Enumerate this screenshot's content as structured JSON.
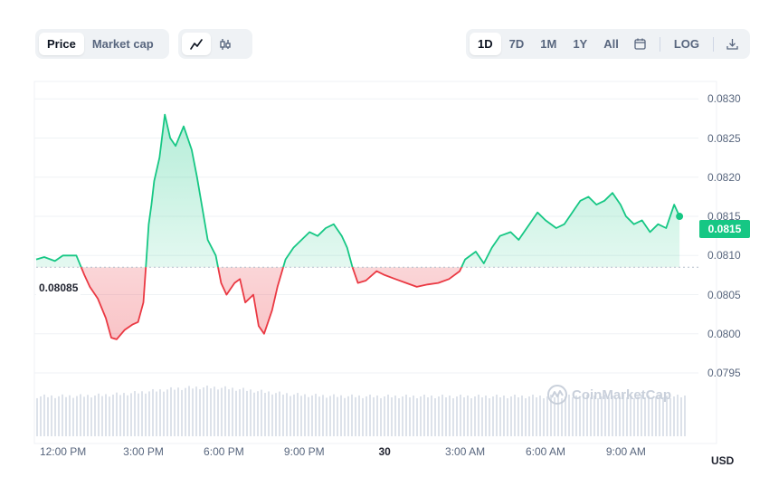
{
  "toolbar": {
    "metric_tabs": [
      "Price",
      "Market cap"
    ],
    "metric_active": "Price",
    "chart_type_icons": [
      "line-chart-icon",
      "candlestick-icon"
    ],
    "chart_type_active": "line-chart-icon",
    "range_tabs": [
      "1D",
      "7D",
      "1M",
      "1Y",
      "All"
    ],
    "range_active": "1D",
    "calendar_icon": "calendar-icon",
    "log_label": "LOG",
    "download_icon": "download-icon"
  },
  "watermark": "CoinMarketCap",
  "colors": {
    "up": "#16c784",
    "down": "#ea3943",
    "volume": "#dde2ea",
    "grid": "#eff2f5"
  },
  "chart_data": {
    "type": "line",
    "currency_label": "USD",
    "reference_value": 0.08085,
    "reference_label": "0.08085",
    "current_value": 0.0815,
    "current_label": "0.0815",
    "ylim": [
      0.0792,
      0.0832
    ],
    "y_ticks": [
      "0.0830",
      "0.0825",
      "0.0820",
      "0.0815",
      "0.0810",
      "0.0805",
      "0.0800",
      "0.0795"
    ],
    "x_ticks": [
      {
        "label": "12:00 PM",
        "t": 12,
        "bold": false
      },
      {
        "label": "3:00 PM",
        "t": 15,
        "bold": false
      },
      {
        "label": "6:00 PM",
        "t": 18,
        "bold": false
      },
      {
        "label": "9:00 PM",
        "t": 21,
        "bold": false
      },
      {
        "label": "30",
        "t": 24,
        "bold": true
      },
      {
        "label": "3:00 AM",
        "t": 27,
        "bold": false
      },
      {
        "label": "6:00 AM",
        "t": 30,
        "bold": false
      },
      {
        "label": "9:00 AM",
        "t": 33,
        "bold": false
      }
    ],
    "xlim": [
      11.0,
      35.3
    ],
    "series": [
      {
        "t": [
          11.0,
          11.3,
          11.7,
          12.0,
          12.5,
          12.8,
          13.0,
          13.3,
          13.6,
          13.8,
          14.0,
          14.3,
          14.6,
          14.8,
          15.0,
          15.1,
          15.2,
          15.3,
          15.4,
          15.6,
          15.8,
          16.0,
          16.2,
          16.5,
          16.8,
          17.0,
          17.2,
          17.4,
          17.7,
          17.9,
          18.1,
          18.4,
          18.6,
          18.8,
          19.1,
          19.3,
          19.5,
          19.8,
          20.0,
          20.3,
          20.6,
          20.9,
          21.2,
          21.5,
          21.8,
          22.1,
          22.4,
          22.6,
          22.8,
          23.0,
          23.3,
          23.7,
          24.0,
          24.4,
          24.8,
          25.2,
          25.6,
          26.0,
          26.4,
          26.8,
          27.0,
          27.4,
          27.7,
          28.0,
          28.3,
          28.7,
          29.0,
          29.4,
          29.7,
          30.0,
          30.4,
          30.7,
          31.0,
          31.3,
          31.6,
          31.9,
          32.2,
          32.5,
          32.8,
          33.0,
          33.3,
          33.6,
          33.9,
          34.2,
          34.5,
          34.8,
          35.0
        ],
        "price": [
          0.08095,
          0.08098,
          0.08093,
          0.081,
          0.081,
          0.08075,
          0.0806,
          0.08045,
          0.0802,
          0.07995,
          0.07993,
          0.08005,
          0.08012,
          0.08015,
          0.0804,
          0.0809,
          0.0814,
          0.08165,
          0.08195,
          0.08225,
          0.0828,
          0.0825,
          0.0824,
          0.08265,
          0.08235,
          0.082,
          0.0816,
          0.0812,
          0.081,
          0.08065,
          0.0805,
          0.08065,
          0.0807,
          0.0804,
          0.0805,
          0.0801,
          0.08,
          0.0803,
          0.0806,
          0.08095,
          0.0811,
          0.0812,
          0.0813,
          0.08125,
          0.08135,
          0.0814,
          0.08125,
          0.0811,
          0.08085,
          0.08065,
          0.08068,
          0.0808,
          0.08075,
          0.0807,
          0.08065,
          0.0806,
          0.08063,
          0.08065,
          0.0807,
          0.0808,
          0.08095,
          0.08105,
          0.0809,
          0.0811,
          0.08125,
          0.0813,
          0.0812,
          0.0814,
          0.08155,
          0.08145,
          0.08135,
          0.0814,
          0.08155,
          0.0817,
          0.08175,
          0.08165,
          0.0817,
          0.0818,
          0.08165,
          0.0815,
          0.0814,
          0.08145,
          0.0813,
          0.0814,
          0.08135,
          0.08165,
          0.0815
        ]
      }
    ]
  }
}
